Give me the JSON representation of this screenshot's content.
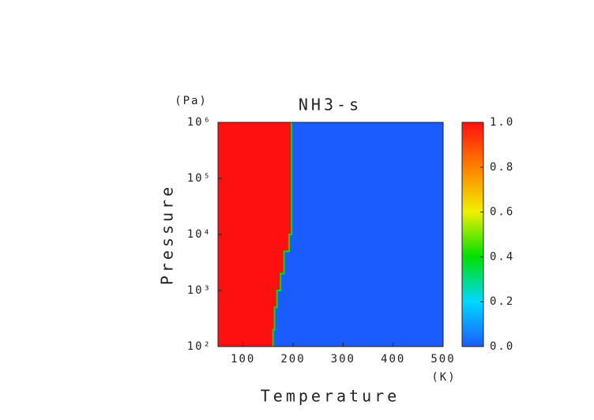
{
  "chart_data": {
    "type": "heatmap",
    "title": "NH3-s",
    "xlabel": "Temperature",
    "ylabel": "Pressure",
    "xunit": "(K)",
    "yunit": "(Pa)",
    "xlim": [
      50,
      500
    ],
    "xticks": [
      100,
      200,
      300,
      400,
      500
    ],
    "ylim": [
      100,
      1000000
    ],
    "log_y": true,
    "yticks": [
      {
        "value": 100,
        "label": "10²"
      },
      {
        "value": 1000,
        "label": "10³"
      },
      {
        "value": 10000,
        "label": "10⁴"
      },
      {
        "value": 100000,
        "label": "10⁵"
      },
      {
        "value": 1000000,
        "label": "10⁶"
      }
    ],
    "boundary": {
      "pressure": [
        100,
        200,
        500,
        1000,
        2000,
        5000,
        10000,
        100000,
        1000000
      ],
      "temperature": [
        160,
        163,
        168,
        175,
        182,
        192,
        197,
        197,
        197
      ]
    },
    "left_value": 1,
    "right_value": 0,
    "clim": [
      0,
      1
    ],
    "cticks": [
      {
        "value": 0,
        "label": "0.0"
      },
      {
        "value": 0.2,
        "label": "0.2"
      },
      {
        "value": 0.4,
        "label": "0.4"
      },
      {
        "value": 0.6,
        "label": "0.6"
      },
      {
        "value": 0.8,
        "label": "0.8"
      },
      {
        "value": 1,
        "label": "1.0"
      }
    ],
    "colorscale": [
      "#1a5cff",
      "#00d8ff",
      "#00e000",
      "#f0f000",
      "#ff8000",
      "#ff1010"
    ]
  }
}
